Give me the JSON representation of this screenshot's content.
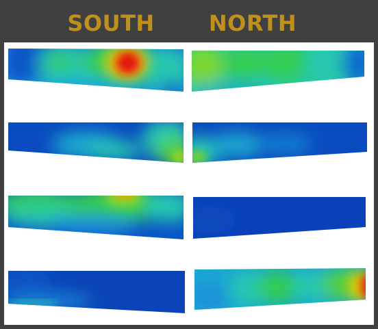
{
  "headers": {
    "south": "SOUTH",
    "north": "NORTH"
  },
  "colors": {
    "background": "#404040",
    "header_text": "#C0901C",
    "panel": "#ffffff",
    "colormap": [
      "#0033b0",
      "#0a5fd0",
      "#19d4d4",
      "#22cc33",
      "#e0e000",
      "#ff8800",
      "#d41010"
    ]
  }
}
